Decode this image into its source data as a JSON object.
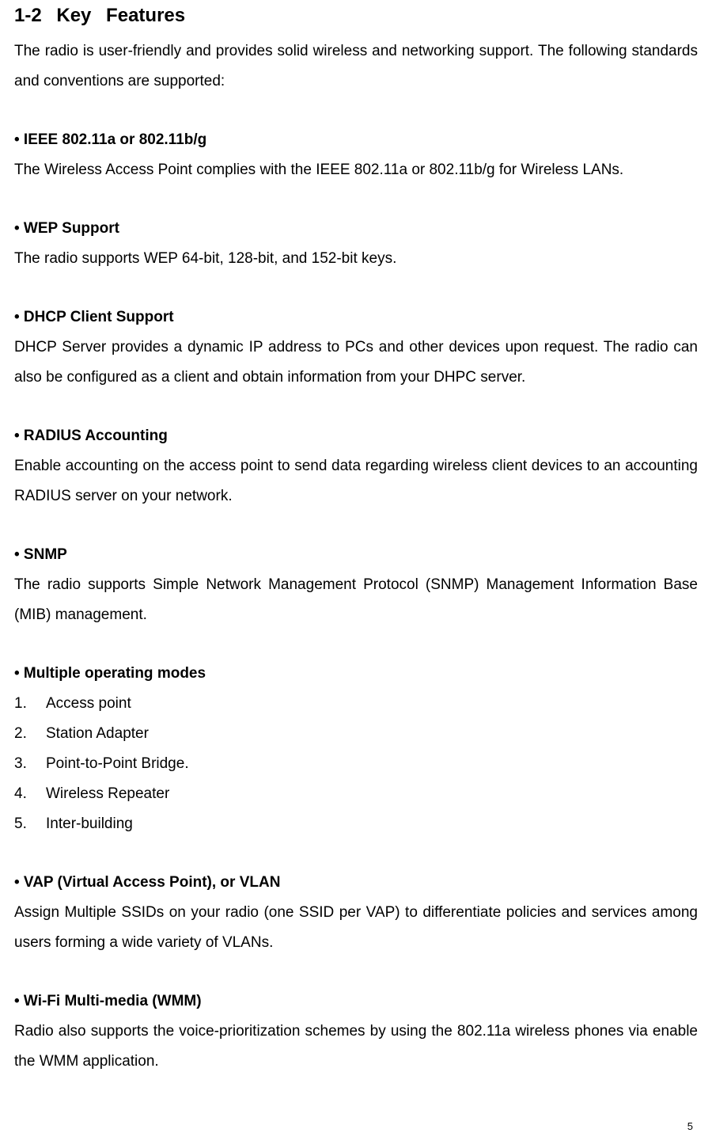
{
  "section": {
    "number": "1-2",
    "title": "Key Features"
  },
  "intro": "The radio is user-friendly and provides solid wireless and networking support. The following standards and conventions are supported:",
  "features": {
    "ieee": {
      "title": "• IEEE 802.11a or 802.11b/g",
      "desc": "The Wireless Access Point complies with the IEEE 802.11a or 802.11b/g for Wireless LANs."
    },
    "wep": {
      "title": "• WEP Support",
      "desc": "The radio supports WEP 64-bit, 128-bit, and 152-bit keys."
    },
    "dhcp": {
      "title": "• DHCP Client Support",
      "desc": "DHCP Server provides a dynamic IP address to PCs and other devices upon request. The radio can also be configured as a client and obtain information from your DHPC server."
    },
    "radius": {
      "title": "• RADIUS Accounting",
      "desc": "Enable accounting on the access point to send data regarding wireless client devices to an accounting RADIUS server on your network."
    },
    "snmp": {
      "title": "• SNMP",
      "desc": "The radio supports Simple Network Management Protocol (SNMP) Management Information Base (MIB) management."
    },
    "modes": {
      "title": "• Multiple operating modes",
      "items": {
        "0": "Access point",
        "1": "Station Adapter",
        "2": "Point-to-Point Bridge.",
        "3": "Wireless Repeater",
        "4": "Inter-building"
      }
    },
    "vap": {
      "title": "• VAP (Virtual Access Point), or VLAN",
      "desc": "Assign Multiple SSIDs on your radio (one SSID per VAP) to differentiate policies and services among users forming a wide variety of VLANs."
    },
    "wmm": {
      "title": "• Wi-Fi Multi-media (WMM)",
      "desc": "Radio also supports the voice-prioritization schemes by using the 802.11a wireless phones via enable the WMM application."
    }
  },
  "pageNumber": "5",
  "styles": {
    "body_font_size": 19,
    "heading_font_size": 24,
    "line_height": 2.0,
    "text_color": "#000000",
    "background_color": "#ffffff",
    "page_number_font_size": 13
  }
}
